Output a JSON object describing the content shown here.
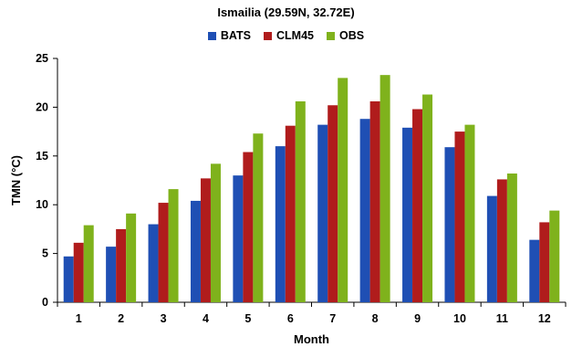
{
  "chart_data": {
    "type": "bar",
    "title": "Ismailia (29.59N, 32.72E)",
    "xlabel": "Month",
    "ylabel": "TMN (°C)",
    "categories": [
      "1",
      "2",
      "3",
      "4",
      "5",
      "6",
      "7",
      "8",
      "9",
      "10",
      "11",
      "12"
    ],
    "ylim": [
      0,
      25
    ],
    "yticks": [
      0,
      5,
      10,
      15,
      20,
      25
    ],
    "grid": false,
    "legend_position": "top-center",
    "series": [
      {
        "name": "BATS",
        "color": "#1f4fb4",
        "values": [
          4.7,
          5.7,
          8.0,
          10.4,
          13.0,
          16.0,
          18.2,
          18.8,
          17.9,
          15.9,
          10.9,
          6.4
        ]
      },
      {
        "name": "CLM45",
        "color": "#b01c1c",
        "values": [
          6.1,
          7.5,
          10.2,
          12.7,
          15.4,
          18.1,
          20.2,
          20.6,
          19.8,
          17.5,
          12.6,
          8.2
        ]
      },
      {
        "name": "OBS",
        "color": "#7fb21c",
        "values": [
          7.9,
          9.1,
          11.6,
          14.2,
          17.3,
          20.6,
          23.0,
          23.3,
          21.3,
          18.2,
          13.2,
          9.4
        ]
      }
    ]
  }
}
